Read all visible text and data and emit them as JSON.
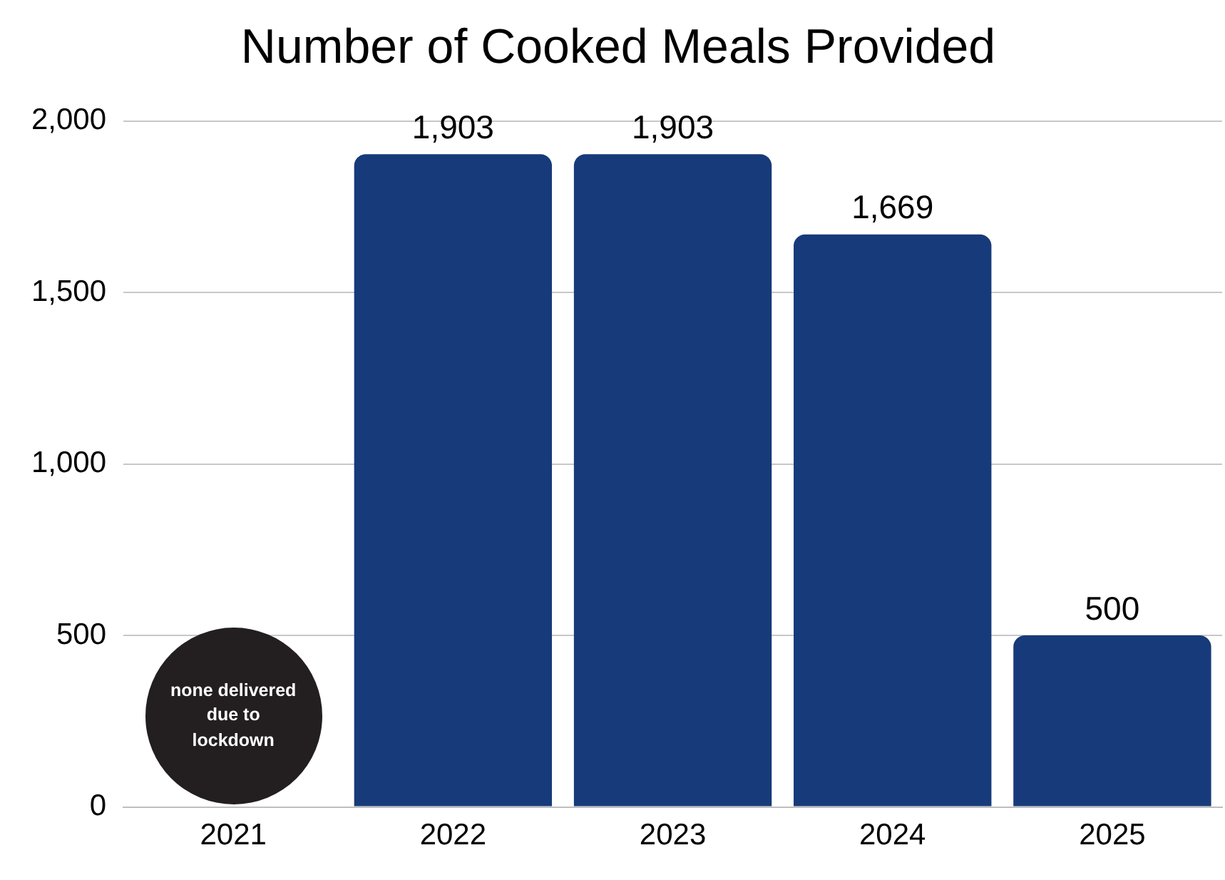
{
  "chart_data": {
    "type": "bar",
    "title": "Number of Cooked Meals Provided",
    "categories": [
      "2021",
      "2022",
      "2023",
      "2024",
      "2025"
    ],
    "values": [
      null,
      1903,
      1903,
      1669,
      500
    ],
    "color": "#173a7a",
    "ylim": [
      0,
      2000
    ],
    "yticks": [
      0,
      500,
      {
        "value": 1000,
        "label": "1,000"
      },
      {
        "value": 1500,
        "label": "1,500"
      },
      {
        "value": 2000,
        "label": "2,000"
      }
    ],
    "grid": "y",
    "legend": false,
    "value_labels": [
      null,
      "1,903",
      "1,903",
      "1,669",
      "500"
    ],
    "annotations": [
      "none delivered due to lockdown"
    ]
  }
}
